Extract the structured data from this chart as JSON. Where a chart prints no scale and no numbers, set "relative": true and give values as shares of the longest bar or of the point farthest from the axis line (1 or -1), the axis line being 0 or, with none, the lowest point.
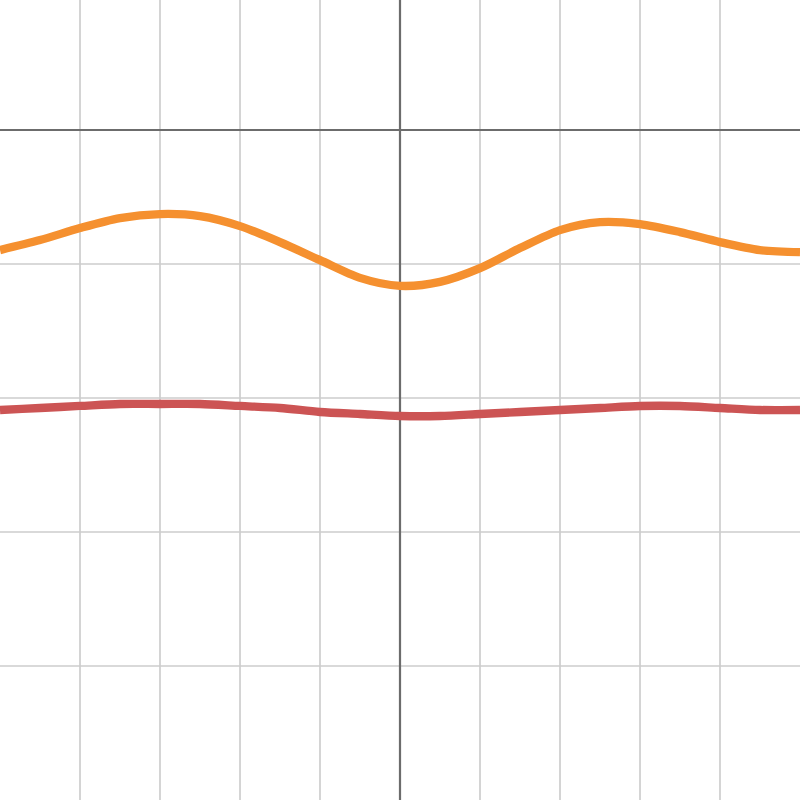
{
  "chart_data": {
    "type": "line",
    "relative": true,
    "grid": true,
    "line_style": "solid",
    "categories": [
      null,
      null,
      null,
      null,
      null,
      null,
      null,
      null,
      null,
      null,
      null,
      null,
      null,
      null,
      null,
      null,
      null,
      null,
      null,
      null,
      null
    ],
    "series": [
      {
        "color": "#f5902f",
        "values": [
          -0.42,
          -0.385,
          -0.343,
          -0.308,
          -0.294,
          -0.301,
          -0.336,
          -0.392,
          -0.455,
          -0.517,
          -0.545,
          -0.531,
          -0.483,
          -0.413,
          -0.35,
          -0.322,
          -0.329,
          -0.357,
          -0.392,
          -0.42,
          -0.427
        ]
      },
      {
        "color": "#cc5454",
        "values": [
          -0.979,
          -0.972,
          -0.965,
          -0.958,
          -0.958,
          -0.958,
          -0.965,
          -0.972,
          -0.986,
          -0.993,
          -1,
          -1,
          -0.993,
          -0.986,
          -0.979,
          -0.972,
          -0.965,
          -0.965,
          -0.972,
          -0.979,
          -0.979
        ]
      }
    ]
  }
}
